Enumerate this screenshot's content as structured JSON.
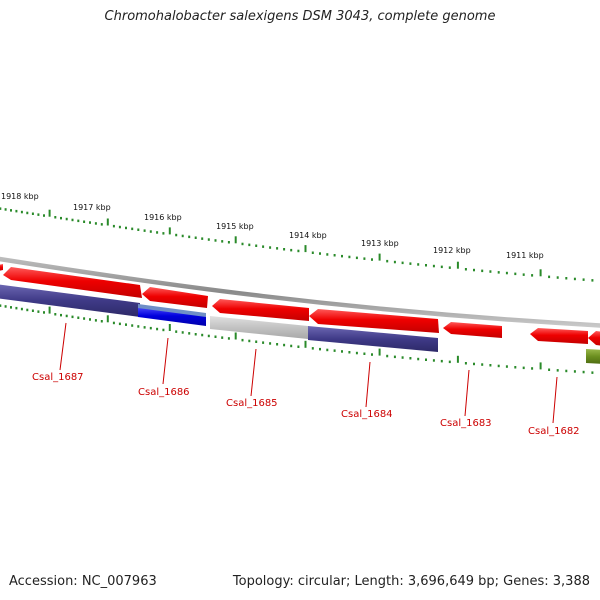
{
  "title": "Chromohalobacter salexigens DSM 3043, complete genome",
  "footer": {
    "accession": "Accession: NC_007963",
    "summary": "Topology: circular; Length: 3,696,649 bp; Genes: 3,388"
  },
  "ruler": {
    "labels": [
      "1918 kbp",
      "1917 kbp",
      "1916 kbp",
      "1915 kbp",
      "1914 kbp",
      "1913 kbp",
      "1912 kbp",
      "1911 kbp"
    ]
  },
  "gene_labels": [
    "Csal_1687",
    "Csal_1686",
    "Csal_1685",
    "Csal_1684",
    "Csal_1683",
    "Csal_1682"
  ],
  "colors": {
    "forward_gene": "#ee0000",
    "reverse_gene": "#3f3a87",
    "rna_gene": "#0000dd",
    "pseudo_gene": "#bdbdbd",
    "other_feature": "#6b8f1f",
    "tick": "#2a8a2a",
    "label_text": "#cc0000",
    "backbone": "#8a8a8a"
  }
}
